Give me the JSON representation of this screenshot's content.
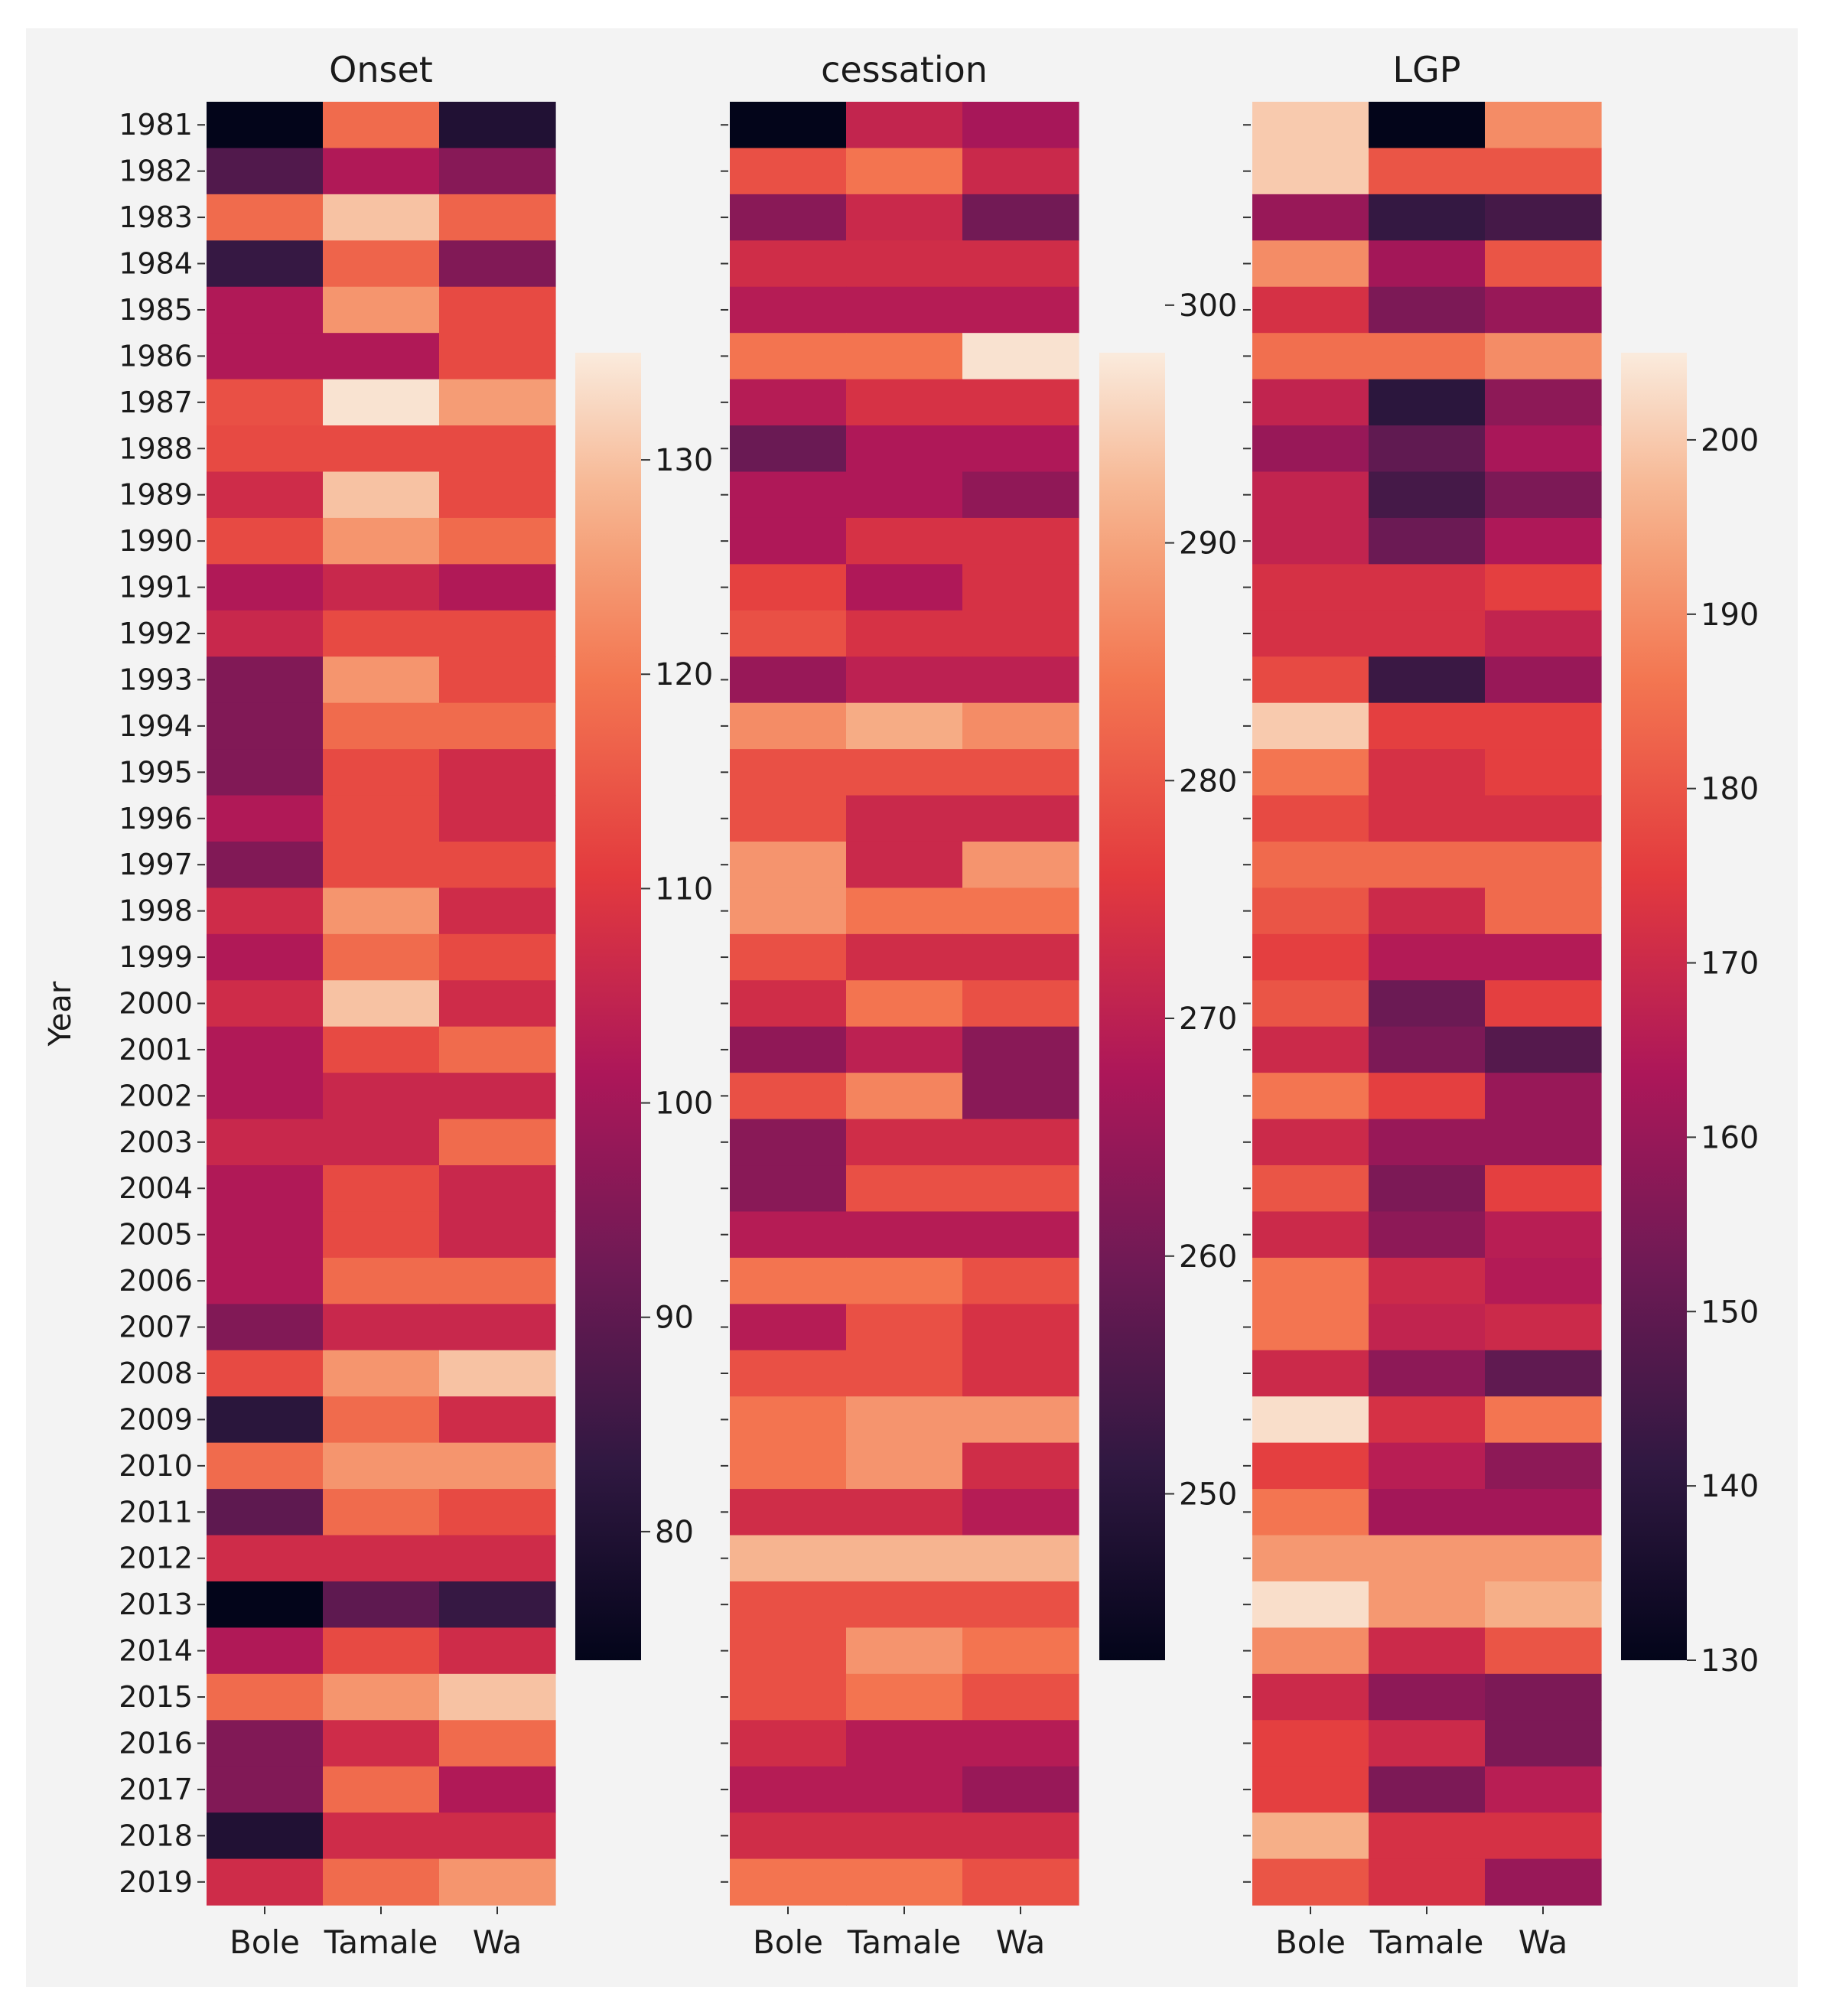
{
  "chart_data": {
    "type": "heatmap",
    "y_axis_label": "Year",
    "years": [
      1981,
      1982,
      1983,
      1984,
      1985,
      1986,
      1987,
      1988,
      1989,
      1990,
      1991,
      1992,
      1993,
      1994,
      1995,
      1996,
      1997,
      1998,
      1999,
      2000,
      2001,
      2002,
      2003,
      2004,
      2005,
      2006,
      2007,
      2008,
      2009,
      2010,
      2011,
      2012,
      2013,
      2014,
      2015,
      2016,
      2017,
      2018,
      2019
    ],
    "columns": [
      "Bole",
      "Tamale",
      "Wa"
    ],
    "panels": [
      {
        "title": "Onset",
        "vmin": 74,
        "vmax": 135,
        "colorbar_ticks": [
          80,
          90,
          100,
          110,
          120,
          130
        ],
        "values": [
          [
            74,
            118,
            80
          ],
          [
            88,
            102,
            96
          ],
          [
            118,
            130,
            117
          ],
          [
            84,
            117,
            95
          ],
          [
            102,
            124,
            113
          ],
          [
            102,
            102,
            113
          ],
          [
            114,
            134,
            125
          ],
          [
            113,
            113,
            113
          ],
          [
            107,
            130,
            113
          ],
          [
            113,
            124,
            118
          ],
          [
            102,
            106,
            102
          ],
          [
            106,
            113,
            113
          ],
          [
            95,
            124,
            113
          ],
          [
            95,
            118,
            118
          ],
          [
            95,
            113,
            107
          ],
          [
            102,
            113,
            107
          ],
          [
            95,
            113,
            113
          ],
          [
            107,
            124,
            107
          ],
          [
            102,
            118,
            113
          ],
          [
            107,
            130,
            107
          ],
          [
            102,
            113,
            118
          ],
          [
            102,
            106,
            106
          ],
          [
            106,
            106,
            118
          ],
          [
            102,
            113,
            106
          ],
          [
            102,
            113,
            106
          ],
          [
            102,
            118,
            118
          ],
          [
            95,
            106,
            106
          ],
          [
            113,
            124,
            130
          ],
          [
            82,
            118,
            107
          ],
          [
            118,
            124,
            124
          ],
          [
            90,
            118,
            113
          ],
          [
            107,
            107,
            107
          ],
          [
            74,
            90,
            84
          ],
          [
            102,
            113,
            107
          ],
          [
            118,
            124,
            130
          ],
          [
            95,
            107,
            118
          ],
          [
            95,
            118,
            102
          ],
          [
            80,
            107,
            107
          ],
          [
            107,
            118,
            124
          ]
        ]
      },
      {
        "title": "cessation",
        "vmin": 243,
        "vmax": 298,
        "colorbar_ticks": [
          250,
          260,
          270,
          280,
          290,
          300
        ],
        "values": [
          [
            243,
            271,
            267
          ],
          [
            279,
            284,
            272
          ],
          [
            263,
            272,
            260
          ],
          [
            273,
            273,
            273
          ],
          [
            269,
            269,
            269
          ],
          [
            284,
            284,
            297
          ],
          [
            269,
            274,
            274
          ],
          [
            259,
            268,
            268
          ],
          [
            268,
            268,
            264
          ],
          [
            268,
            274,
            274
          ],
          [
            277,
            268,
            274
          ],
          [
            279,
            274,
            274
          ],
          [
            265,
            270,
            270
          ],
          [
            287,
            291,
            287
          ],
          [
            279,
            279,
            279
          ],
          [
            279,
            272,
            272
          ],
          [
            288,
            272,
            288
          ],
          [
            288,
            284,
            284
          ],
          [
            279,
            273,
            273
          ],
          [
            273,
            284,
            279
          ],
          [
            264,
            270,
            263
          ],
          [
            279,
            286,
            263
          ],
          [
            263,
            273,
            273
          ],
          [
            263,
            279,
            279
          ],
          [
            269,
            269,
            269
          ],
          [
            284,
            284,
            279
          ],
          [
            269,
            279,
            274
          ],
          [
            279,
            279,
            274
          ],
          [
            284,
            288,
            288
          ],
          [
            284,
            288,
            273
          ],
          [
            273,
            273,
            269
          ],
          [
            292,
            292,
            292
          ],
          [
            279,
            279,
            279
          ],
          [
            279,
            288,
            284
          ],
          [
            279,
            284,
            279
          ],
          [
            273,
            269,
            269
          ],
          [
            269,
            269,
            265
          ],
          [
            273,
            273,
            273
          ],
          [
            284,
            284,
            279
          ]
        ]
      },
      {
        "title": "LGP",
        "vmin": 130,
        "vmax": 205,
        "colorbar_ticks": [
          130,
          140,
          150,
          160,
          170,
          180,
          190,
          200
        ],
        "values": [
          [
            200,
            130,
            190
          ],
          [
            200,
            180,
            180
          ],
          [
            160,
            142,
            145
          ],
          [
            190,
            162,
            180
          ],
          [
            172,
            155,
            160
          ],
          [
            185,
            185,
            190
          ],
          [
            168,
            140,
            158
          ],
          [
            160,
            150,
            163
          ],
          [
            168,
            145,
            155
          ],
          [
            168,
            152,
            164
          ],
          [
            172,
            172,
            176
          ],
          [
            172,
            172,
            168
          ],
          [
            178,
            143,
            160
          ],
          [
            200,
            176,
            176
          ],
          [
            186,
            172,
            176
          ],
          [
            178,
            172,
            172
          ],
          [
            184,
            184,
            184
          ],
          [
            180,
            170,
            184
          ],
          [
            176,
            165,
            165
          ],
          [
            180,
            152,
            176
          ],
          [
            170,
            155,
            148
          ],
          [
            186,
            176,
            160
          ],
          [
            170,
            160,
            160
          ],
          [
            180,
            155,
            176
          ],
          [
            170,
            158,
            166
          ],
          [
            186,
            170,
            165
          ],
          [
            186,
            168,
            170
          ],
          [
            170,
            158,
            150
          ],
          [
            203,
            172,
            186
          ],
          [
            176,
            166,
            158
          ],
          [
            186,
            162,
            162
          ],
          [
            192,
            192,
            192
          ],
          [
            203,
            192,
            196
          ],
          [
            190,
            170,
            180
          ],
          [
            170,
            158,
            155
          ],
          [
            176,
            170,
            155
          ],
          [
            176,
            155,
            166
          ],
          [
            196,
            172,
            172
          ],
          [
            180,
            172,
            160
          ]
        ]
      }
    ]
  }
}
